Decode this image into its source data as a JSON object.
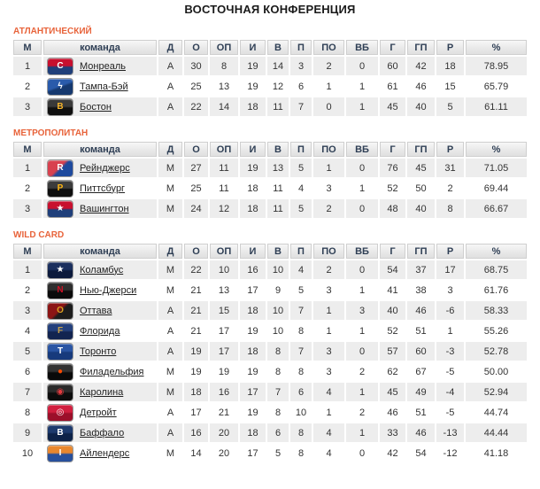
{
  "page": {
    "title": "ВОСТОЧНАЯ КОНФЕРЕНЦИЯ"
  },
  "colors": {
    "section_label": "#e8633a",
    "header_text": "#2f3f55",
    "row_alt_bg": "#ededed",
    "cell_text": "#333333",
    "link_text": "#222222",
    "title_text": "#1a1a1a"
  },
  "columns": [
    "М",
    "команда",
    "Д",
    "О",
    "ОП",
    "И",
    "В",
    "П",
    "ПО",
    "ВБ",
    "Г",
    "ГП",
    "Р",
    "%"
  ],
  "sections": [
    {
      "label": "АТЛАНТИЧЕСКИЙ",
      "teams": [
        {
          "rank": "1",
          "name": "Монреаль",
          "values": [
            "А",
            "30",
            "8",
            "19",
            "14",
            "3",
            "2",
            "0",
            "60",
            "42",
            "18",
            "78.95"
          ],
          "logo": {
            "icon": "montreal-canadiens-logo",
            "dir": "180deg",
            "c1": "#c8102e",
            "c2": "#1f3f7a",
            "glyph": "C",
            "glyph_color": "#ffffff"
          }
        },
        {
          "rank": "2",
          "name": "Тампа-Бэй",
          "values": [
            "А",
            "25",
            "13",
            "19",
            "12",
            "6",
            "1",
            "1",
            "61",
            "46",
            "15",
            "65.79"
          ],
          "logo": {
            "icon": "tampa-bay-lightning-logo",
            "dir": "160deg",
            "c1": "#2a5bab",
            "c2": "#16396f",
            "glyph": "ϟ",
            "glyph_color": "#ffffff"
          }
        },
        {
          "rank": "3",
          "name": "Бостон",
          "values": [
            "А",
            "22",
            "14",
            "18",
            "11",
            "7",
            "0",
            "1",
            "45",
            "40",
            "5",
            "61.11"
          ],
          "logo": {
            "icon": "boston-bruins-logo",
            "dir": "180deg",
            "c1": "#3a3a3a",
            "c2": "#101010",
            "glyph": "B",
            "glyph_color": "#f5b32a"
          }
        }
      ]
    },
    {
      "label": "МЕТРОПОЛИТАН",
      "teams": [
        {
          "rank": "1",
          "name": "Рейнджерс",
          "values": [
            "М",
            "27",
            "11",
            "19",
            "13",
            "5",
            "1",
            "0",
            "76",
            "45",
            "31",
            "71.05"
          ],
          "logo": {
            "icon": "new-york-rangers-logo",
            "dir": "135deg",
            "c1": "#d8414f",
            "c2": "#1e4a9e",
            "glyph": "R",
            "glyph_color": "#ffffff"
          }
        },
        {
          "rank": "2",
          "name": "Питтсбург",
          "values": [
            "М",
            "25",
            "11",
            "18",
            "11",
            "4",
            "3",
            "1",
            "52",
            "50",
            "2",
            "69.44"
          ],
          "logo": {
            "icon": "pittsburgh-penguins-logo",
            "dir": "180deg",
            "c1": "#3c3c3c",
            "c2": "#0e0e0e",
            "glyph": "P",
            "glyph_color": "#fcb514"
          }
        },
        {
          "rank": "3",
          "name": "Вашингтон",
          "values": [
            "М",
            "24",
            "12",
            "18",
            "11",
            "5",
            "2",
            "0",
            "48",
            "40",
            "8",
            "66.67"
          ],
          "logo": {
            "icon": "washington-capitals-logo",
            "dir": "180deg",
            "c1": "#c8102e",
            "c2": "#1f3f7a",
            "glyph": "★",
            "glyph_color": "#ffffff"
          }
        }
      ]
    },
    {
      "label": "WILD CARD",
      "teams": [
        {
          "rank": "1",
          "name": "Коламбус",
          "values": [
            "М",
            "22",
            "10",
            "16",
            "10",
            "4",
            "2",
            "0",
            "54",
            "37",
            "17",
            "68.75"
          ],
          "logo": {
            "icon": "columbus-blue-jackets-logo",
            "dir": "180deg",
            "c1": "#1b2f5e",
            "c2": "#0c1a3c",
            "glyph": "★",
            "glyph_color": "#ffffff"
          }
        },
        {
          "rank": "2",
          "name": "Нью-Джерси",
          "values": [
            "М",
            "21",
            "13",
            "17",
            "9",
            "5",
            "3",
            "1",
            "41",
            "38",
            "3",
            "61.76"
          ],
          "logo": {
            "icon": "new-jersey-devils-logo",
            "dir": "180deg",
            "c1": "#2e2e2e",
            "c2": "#0b0b0b",
            "glyph": "N",
            "glyph_color": "#ce1126"
          }
        },
        {
          "rank": "3",
          "name": "Оттава",
          "values": [
            "А",
            "21",
            "15",
            "18",
            "10",
            "7",
            "1",
            "3",
            "40",
            "46",
            "-6",
            "58.33"
          ],
          "logo": {
            "icon": "ottawa-senators-logo",
            "dir": "135deg",
            "c1": "#8c1515",
            "c2": "#1c1c1c",
            "glyph": "O",
            "glyph_color": "#d9a021"
          }
        },
        {
          "rank": "4",
          "name": "Флорида",
          "values": [
            "А",
            "21",
            "17",
            "19",
            "10",
            "8",
            "1",
            "1",
            "52",
            "51",
            "1",
            "55.26"
          ],
          "logo": {
            "icon": "florida-panthers-logo",
            "dir": "180deg",
            "c1": "#24407c",
            "c2": "#122450",
            "glyph": "F",
            "glyph_color": "#c9a24a"
          }
        },
        {
          "rank": "5",
          "name": "Торонто",
          "values": [
            "А",
            "19",
            "17",
            "18",
            "8",
            "7",
            "3",
            "0",
            "57",
            "60",
            "-3",
            "52.78"
          ],
          "logo": {
            "icon": "toronto-maple-leafs-logo",
            "dir": "180deg",
            "c1": "#2a55a4",
            "c2": "#173a7c",
            "glyph": "T",
            "glyph_color": "#ffffff"
          }
        },
        {
          "rank": "6",
          "name": "Филадельфия",
          "values": [
            "М",
            "19",
            "19",
            "19",
            "8",
            "8",
            "3",
            "2",
            "62",
            "67",
            "-5",
            "50.00"
          ],
          "logo": {
            "icon": "philadelphia-flyers-logo",
            "dir": "180deg",
            "c1": "#323232",
            "c2": "#0a0a0a",
            "glyph": "●",
            "glyph_color": "#f74902"
          }
        },
        {
          "rank": "7",
          "name": "Каролина",
          "values": [
            "М",
            "18",
            "16",
            "17",
            "7",
            "6",
            "4",
            "1",
            "45",
            "49",
            "-4",
            "52.94"
          ],
          "logo": {
            "icon": "carolina-hurricanes-logo",
            "dir": "180deg",
            "c1": "#2b2b2b",
            "c2": "#0c0c0c",
            "glyph": "◉",
            "glyph_color": "#e03a3e"
          }
        },
        {
          "rank": "8",
          "name": "Детройт",
          "values": [
            "А",
            "17",
            "21",
            "19",
            "8",
            "10",
            "1",
            "2",
            "46",
            "51",
            "-5",
            "44.74"
          ],
          "logo": {
            "icon": "detroit-red-wings-logo",
            "dir": "180deg",
            "c1": "#d11f3f",
            "c2": "#9c0f2a",
            "glyph": "◎",
            "glyph_color": "#ffffff"
          }
        },
        {
          "rank": "9",
          "name": "Баффало",
          "values": [
            "А",
            "16",
            "20",
            "18",
            "6",
            "8",
            "4",
            "1",
            "33",
            "46",
            "-13",
            "44.44"
          ],
          "logo": {
            "icon": "buffalo-sabres-logo",
            "dir": "180deg",
            "c1": "#1d3a6d",
            "c2": "#0d2248",
            "glyph": "B",
            "glyph_color": "#ffffff"
          }
        },
        {
          "rank": "10",
          "name": "Айлендерс",
          "values": [
            "М",
            "14",
            "20",
            "17",
            "5",
            "8",
            "4",
            "0",
            "42",
            "54",
            "-12",
            "41.18"
          ],
          "logo": {
            "icon": "new-york-islanders-logo",
            "dir": "180deg",
            "c1": "#e8872e",
            "c2": "#28509c",
            "glyph": "I",
            "glyph_color": "#ffffff"
          }
        }
      ]
    }
  ]
}
